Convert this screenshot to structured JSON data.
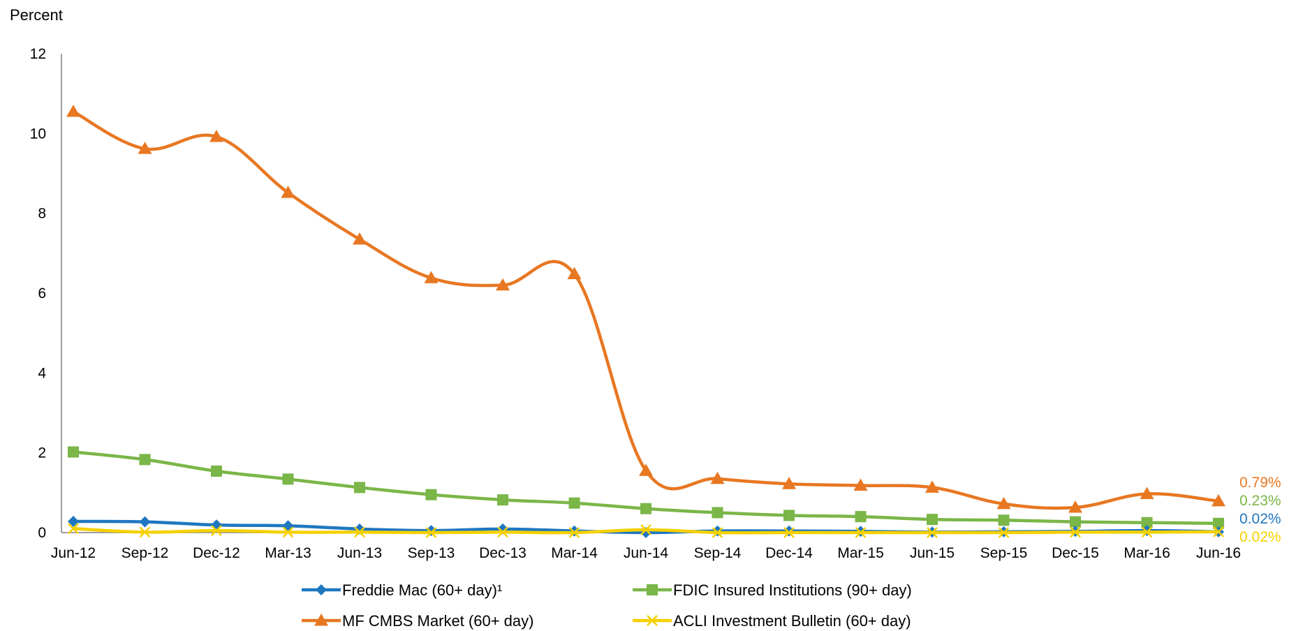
{
  "chart_data": {
    "type": "line",
    "ylabel": "Percent",
    "ylim": [
      0,
      12
    ],
    "yticks": [
      0,
      2,
      4,
      6,
      8,
      10,
      12
    ],
    "categories": [
      "Jun-12",
      "Sep-12",
      "Dec-12",
      "Mar-13",
      "Jun-13",
      "Sep-13",
      "Dec-13",
      "Mar-14",
      "Jun-14",
      "Sep-14",
      "Dec-14",
      "Mar-15",
      "Jun-15",
      "Sep-15",
      "Dec-15",
      "Mar-16",
      "Jun-16"
    ],
    "legend_position": "bottom",
    "grid": false,
    "series": [
      {
        "name": "Freddie Mac (60+ day)¹",
        "color": "#1f77c0",
        "marker": "diamond",
        "values": [
          0.28,
          0.27,
          0.19,
          0.17,
          0.09,
          0.05,
          0.09,
          0.04,
          0.0,
          0.04,
          0.04,
          0.03,
          0.01,
          0.02,
          0.03,
          0.05,
          0.02
        ],
        "end_label": "0.02%"
      },
      {
        "name": "FDIC Insured Institutions (90+ day)",
        "color": "#7ab648",
        "marker": "square",
        "values": [
          2.02,
          1.83,
          1.54,
          1.34,
          1.13,
          0.95,
          0.82,
          0.74,
          0.6,
          0.5,
          0.43,
          0.4,
          0.33,
          0.31,
          0.27,
          0.25,
          0.23
        ],
        "end_label": "0.23%"
      },
      {
        "name": "MF CMBS Market (60+ day)",
        "color": "#e87722",
        "marker": "triangle",
        "values": [
          10.55,
          9.62,
          9.92,
          8.52,
          7.35,
          6.38,
          6.2,
          6.48,
          1.55,
          1.35,
          1.22,
          1.18,
          1.13,
          0.72,
          0.63,
          0.97,
          0.79
        ],
        "end_label": "0.79%"
      },
      {
        "name": "ACLI Investment Bulletin (60+ day)",
        "color": "#f5d000",
        "marker": "x",
        "values": [
          0.1,
          0.01,
          0.05,
          0.01,
          0.01,
          0.0,
          0.01,
          0.0,
          0.07,
          0.0,
          0.0,
          0.0,
          0.0,
          0.0,
          0.01,
          0.01,
          0.02
        ],
        "end_label": "0.02%"
      }
    ]
  }
}
